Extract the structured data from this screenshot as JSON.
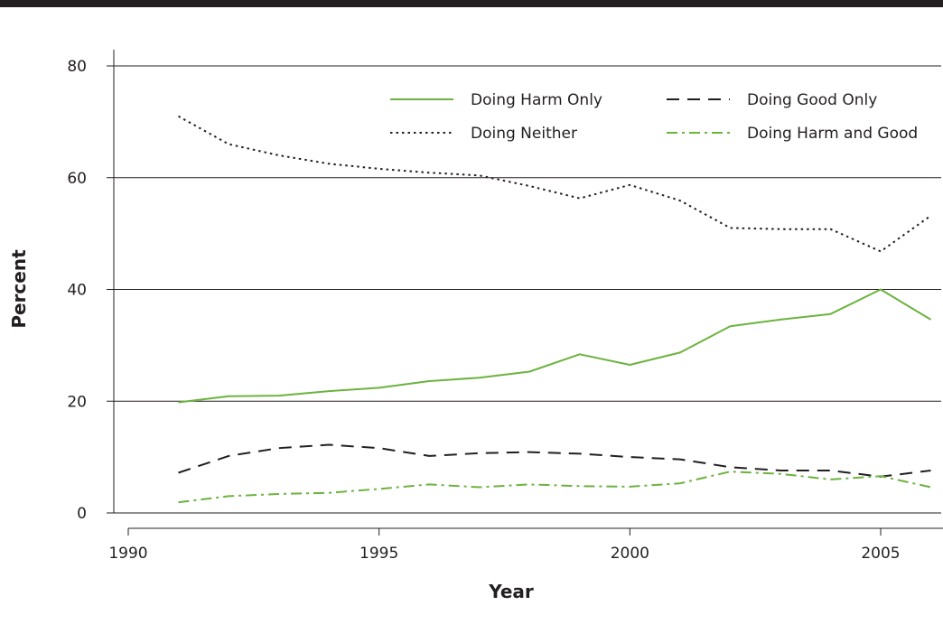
{
  "chart_data": {
    "type": "line",
    "xlabel": "Year",
    "ylabel": "Percent",
    "xlim": [
      1989.5,
      2006.2
    ],
    "ylim": [
      0,
      80
    ],
    "xticks": [
      1990,
      1995,
      2000,
      2005
    ],
    "yticks": [
      0,
      20,
      40,
      60,
      80
    ],
    "grid": "horizontal",
    "legend_position": "top-right",
    "x": [
      1991,
      1992,
      1993,
      1994,
      1995,
      1996,
      1997,
      1998,
      1999,
      2000,
      2001,
      2002,
      2003,
      2004,
      2005,
      2006
    ],
    "series": [
      {
        "name": "Doing Harm Only",
        "color": "#6cb33f",
        "dash": "solid",
        "values": [
          19.8,
          20.9,
          21.0,
          21.8,
          22.4,
          23.6,
          24.2,
          25.3,
          28.4,
          26.5,
          28.7,
          33.4,
          34.6,
          35.6,
          40.0,
          34.6
        ]
      },
      {
        "name": "Doing Good Only",
        "color": "#231f20",
        "dash": "dashed",
        "values": [
          7.2,
          10.2,
          11.6,
          12.2,
          11.6,
          10.2,
          10.7,
          10.9,
          10.6,
          10.0,
          9.6,
          8.2,
          7.6,
          7.6,
          6.5,
          7.6
        ]
      },
      {
        "name": "Doing Neither",
        "color": "#231f20",
        "dash": "dotted",
        "values": [
          71.0,
          66.0,
          64.0,
          62.5,
          61.6,
          60.9,
          60.4,
          58.5,
          56.3,
          58.7,
          55.9,
          51.0,
          50.8,
          50.8,
          46.8,
          53.2
        ]
      },
      {
        "name": "Doing Harm and Good",
        "color": "#6cb33f",
        "dash": "dashdot",
        "values": [
          1.9,
          3.0,
          3.4,
          3.6,
          4.3,
          5.1,
          4.6,
          5.1,
          4.8,
          4.7,
          5.3,
          7.4,
          7.0,
          6.0,
          6.6,
          4.6
        ]
      }
    ]
  }
}
